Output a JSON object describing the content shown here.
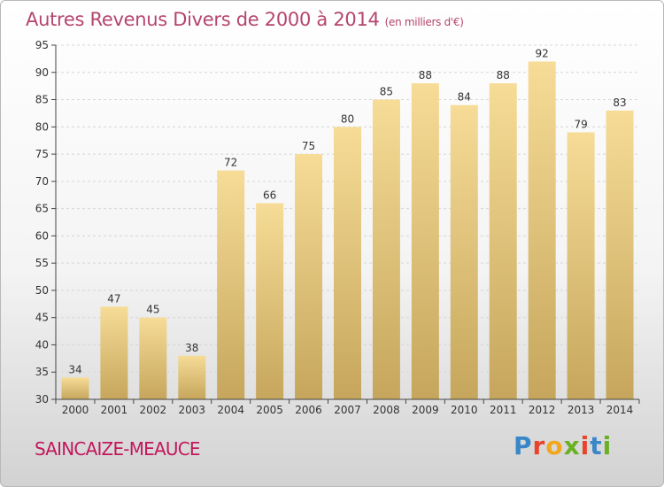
{
  "header": {
    "title": "Autres Revenus Divers de 2000 à 2014",
    "unit": "(en milliers d'€)"
  },
  "footer": {
    "town": "SAINCAIZE-MEAUCE",
    "logo_letters": [
      "P",
      "r",
      "o",
      "x",
      "i",
      "t",
      "i"
    ],
    "logo_colors": [
      "#3a87c8",
      "#e8432b",
      "#f2a71b",
      "#6ab023",
      "#e8432b",
      "#3a87c8",
      "#6ab023"
    ]
  },
  "colors": {
    "bar_top": "#f6dc97",
    "bar_bottom": "#c6a65c",
    "grid": "#d6d6d6",
    "axis": "#444444"
  },
  "chart_data": {
    "type": "bar",
    "title": "Autres Revenus Divers de 2000 à 2014",
    "xlabel": "",
    "ylabel": "",
    "categories": [
      "2000",
      "2001",
      "2002",
      "2003",
      "2004",
      "2005",
      "2006",
      "2007",
      "2008",
      "2009",
      "2010",
      "2011",
      "2012",
      "2013",
      "2014"
    ],
    "values": [
      34,
      47,
      45,
      38,
      72,
      66,
      75,
      80,
      85,
      88,
      84,
      88,
      92,
      79,
      83
    ],
    "ylim": [
      30,
      95
    ],
    "yticks": [
      30,
      35,
      40,
      45,
      50,
      55,
      60,
      65,
      70,
      75,
      80,
      85,
      90,
      95
    ],
    "grid": "horizontal dashed",
    "legend": "none"
  }
}
